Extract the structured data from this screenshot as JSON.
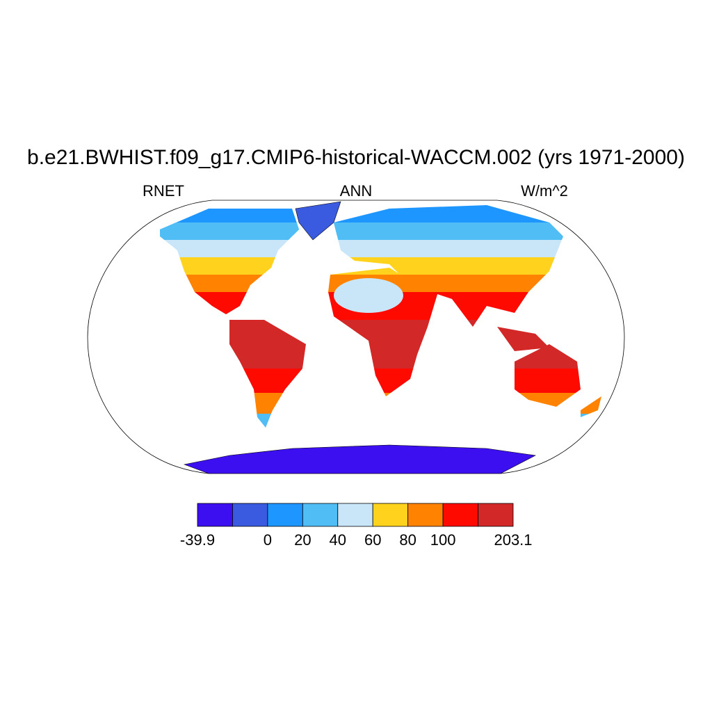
{
  "title": "b.e21.BWHIST.f09_g17.CMIP6-historical-WACCM.002 (yrs 1971-2000)",
  "labels": {
    "left": "RNET",
    "center": "ANN",
    "right": "W/m^2"
  },
  "colorbar": {
    "colors": [
      "#3c0ff0",
      "#3a5ae0",
      "#1e96ff",
      "#50bef5",
      "#c8e6f8",
      "#ffd21e",
      "#ff8200",
      "#ff0a00",
      "#d22828"
    ],
    "levels": [
      -39.9,
      null,
      0,
      20,
      40,
      60,
      80,
      100,
      null,
      203.1
    ]
  }
}
